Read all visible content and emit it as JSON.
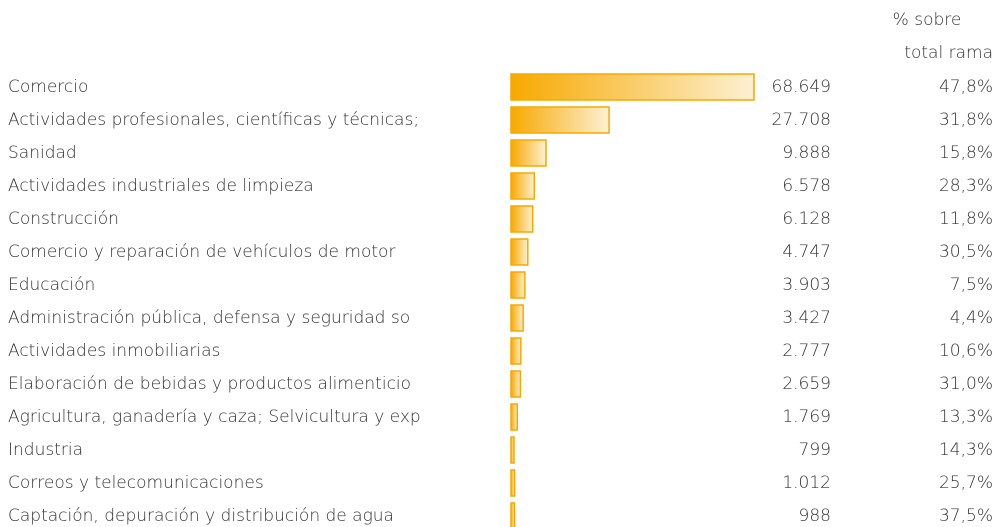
{
  "chart_data": {
    "type": "bar",
    "orientation": "horizontal",
    "color": "#f7a900",
    "categories": [
      "Comercio",
      "Actividades profesionales, científicas y técnicas;",
      "Sanidad",
      "Actividades industriales de limpieza",
      "Construcción",
      "Comercio y reparación de vehículos de motor",
      "Educación",
      "Administración pública, defensa y seguridad so",
      "Actividades inmobiliarias",
      "Elaboración de bebidas y productos alimenticio",
      "Agricultura, ganadería y caza; Selvicultura y exp",
      "Industria",
      "Correos y telecomunicaciones",
      "Captación, depuración y distribución de agua"
    ],
    "values": [
      68649,
      27708,
      9888,
      6578,
      6128,
      4747,
      3903,
      3427,
      2777,
      2659,
      1769,
      799,
      1012,
      988
    ],
    "value_labels": [
      "68.649",
      "27.708",
      "9.888",
      "6.578",
      "6.128",
      "4.747",
      "3.903",
      "3.427",
      "2.777",
      "2.659",
      "1.769",
      "799",
      "1.012",
      "988"
    ],
    "share": {
      "header": [
        "% sobre",
        "total rama"
      ],
      "values": [
        47.8,
        31.8,
        15.8,
        28.3,
        11.8,
        30.5,
        7.5,
        4.4,
        10.6,
        31.0,
        13.3,
        14.3,
        25.7,
        37.5
      ],
      "labels": [
        "47,8%",
        "31,8%",
        "15,8%",
        "28,3%",
        "11,8%",
        "30,5%",
        "7,5%",
        "4,4%",
        "10,6%",
        "31,0%",
        "13,3%",
        "14,3%",
        "25,7%",
        "37,5%"
      ]
    }
  }
}
